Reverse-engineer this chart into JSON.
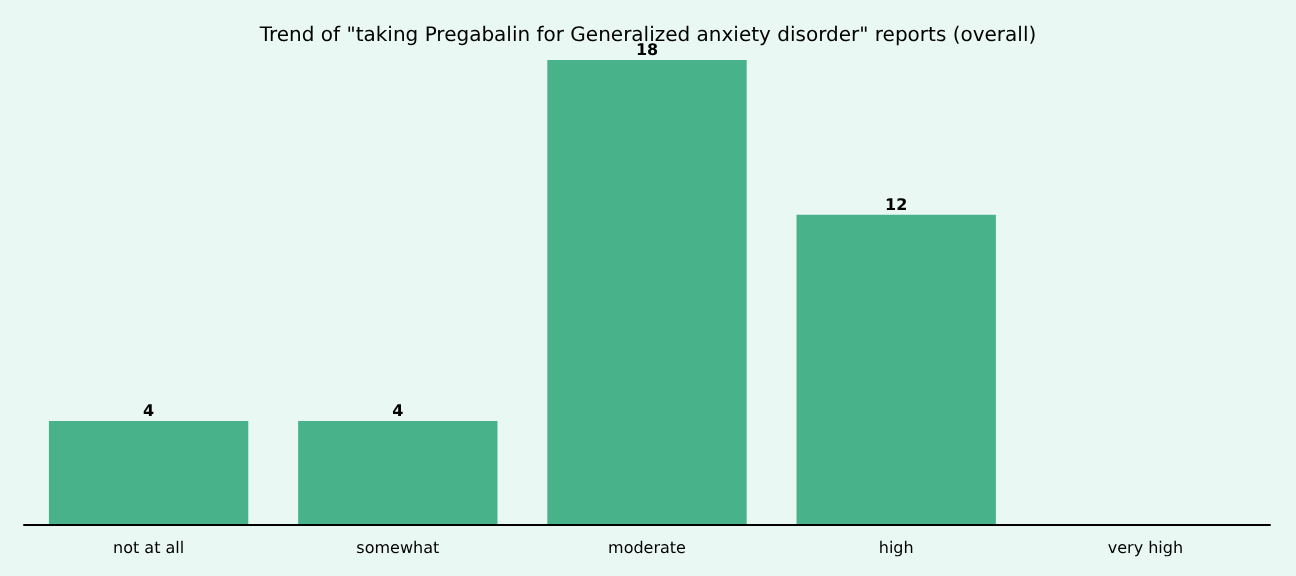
{
  "chart_data": {
    "type": "bar",
    "title": "Trend of \"taking Pregabalin for Generalized anxiety disorder\" reports (overall)",
    "categories": [
      "not at all",
      "somewhat",
      "moderate",
      "high",
      "very high"
    ],
    "values": [
      4,
      4,
      18,
      12,
      null
    ],
    "color": "#48b38a",
    "data_labels": true
  }
}
